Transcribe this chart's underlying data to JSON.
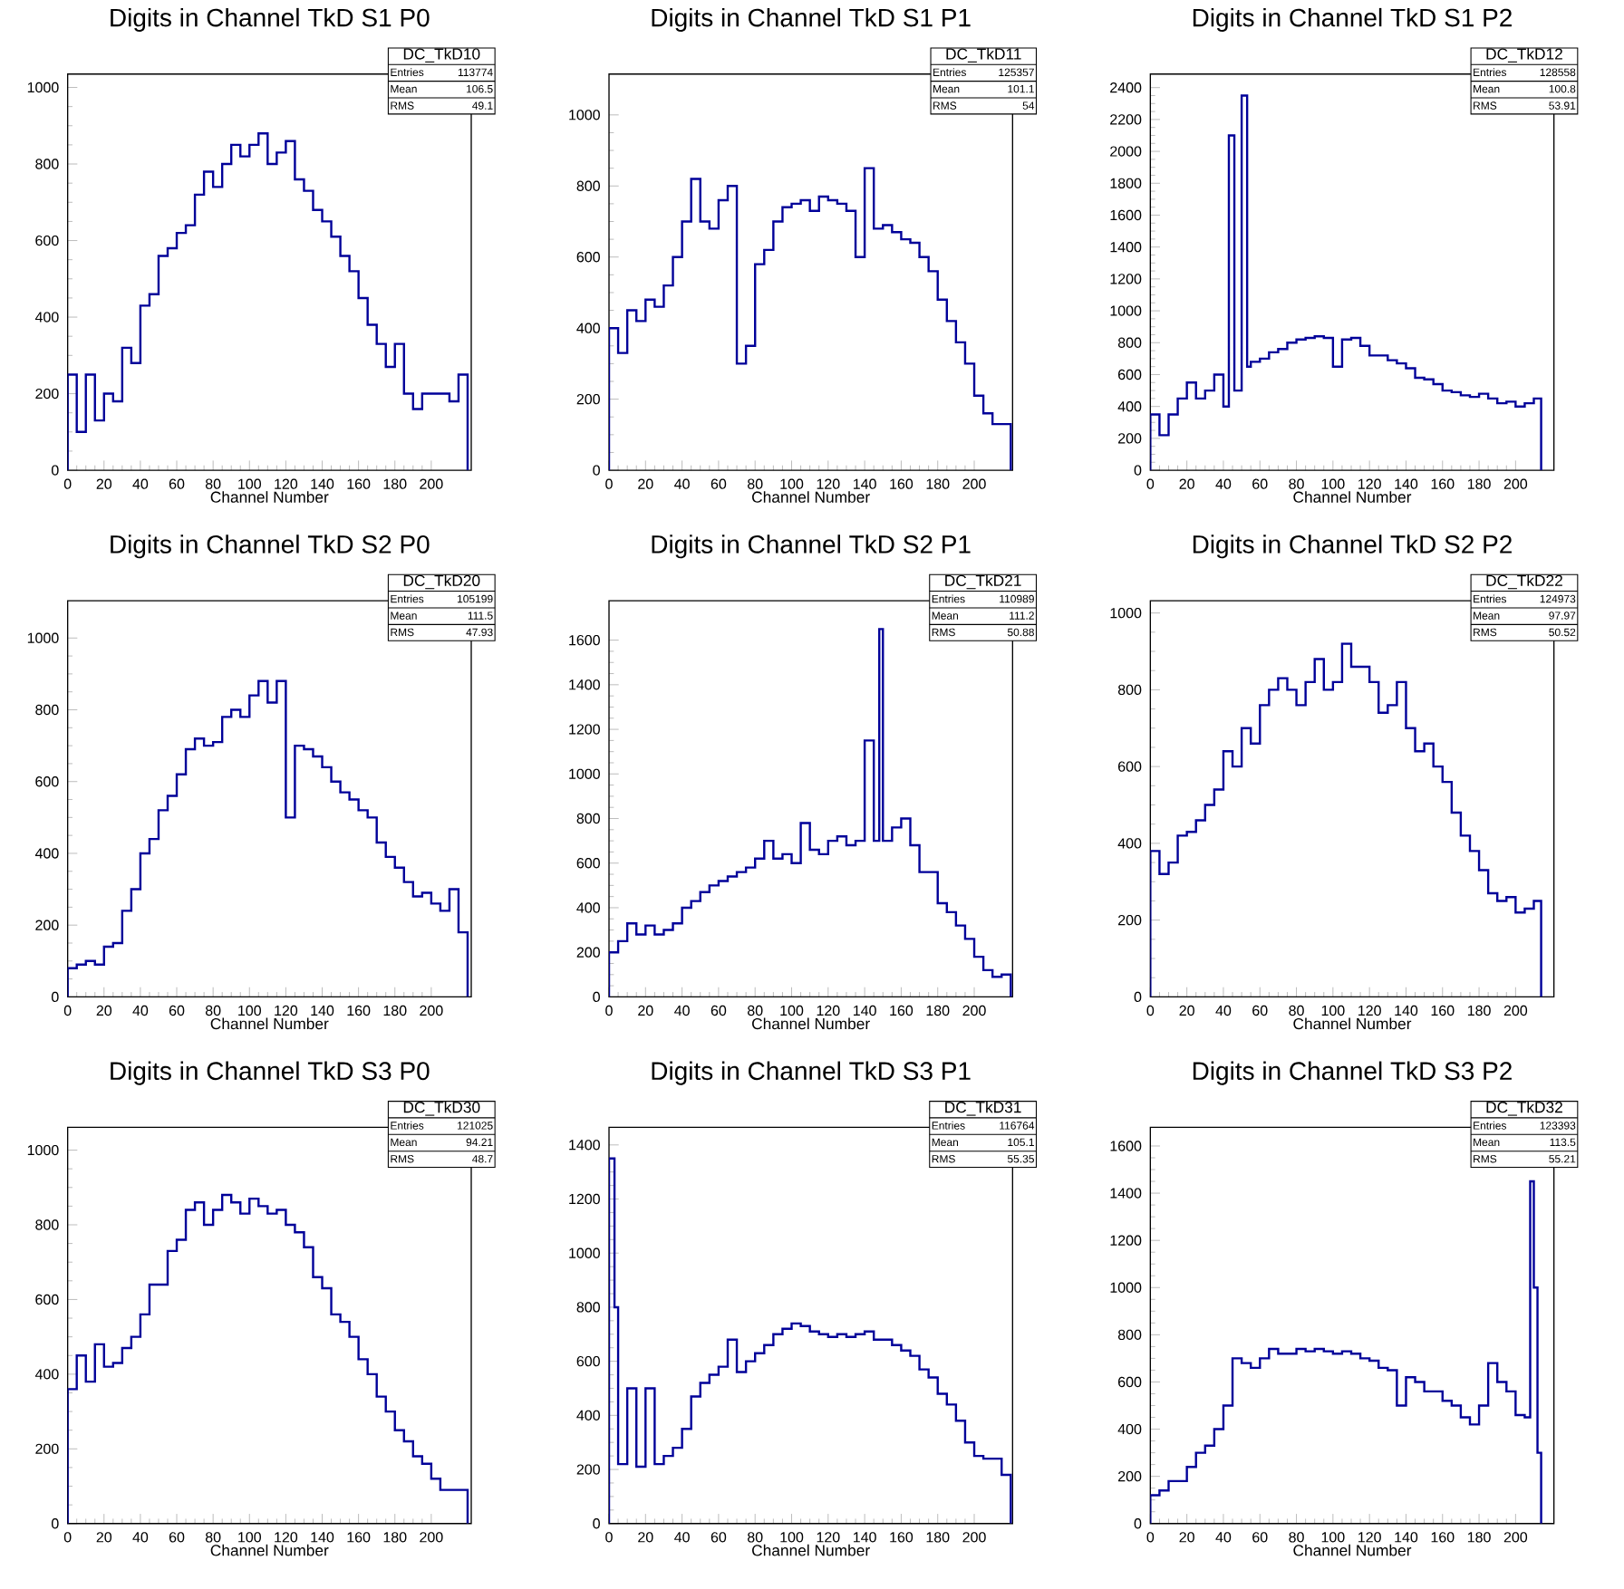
{
  "chart_data": [
    {
      "type": "histogram",
      "title": "Digits in Channel TkD S1 P0",
      "xlabel": "Channel Number",
      "color": "#000099",
      "xlim": [
        0,
        222
      ],
      "ylim": [
        0,
        1035
      ],
      "xticks": [
        0,
        20,
        40,
        60,
        80,
        100,
        120,
        140,
        160,
        180,
        200
      ],
      "yticks": [
        0,
        200,
        400,
        600,
        800,
        1000
      ],
      "annotations": [
        "DC_TkD10",
        "Entries",
        "113774",
        "Mean",
        "106.5",
        "RMS",
        "49.1"
      ],
      "bins": [
        0,
        5,
        10,
        15,
        20,
        25,
        30,
        35,
        40,
        45,
        50,
        55,
        60,
        65,
        70,
        75,
        80,
        85,
        90,
        95,
        100,
        105,
        110,
        115,
        120,
        125,
        130,
        135,
        140,
        145,
        150,
        155,
        160,
        165,
        170,
        175,
        180,
        185,
        190,
        195,
        200,
        205,
        210,
        215,
        220
      ],
      "values": [
        250,
        100,
        250,
        130,
        200,
        180,
        320,
        280,
        430,
        460,
        560,
        580,
        620,
        640,
        720,
        780,
        740,
        800,
        850,
        820,
        850,
        880,
        800,
        830,
        860,
        760,
        730,
        680,
        650,
        610,
        560,
        520,
        450,
        380,
        330,
        270,
        330,
        200,
        160,
        200,
        200,
        200,
        180,
        250
      ]
    },
    {
      "type": "histogram",
      "title": "Digits in Channel TkD S1 P1",
      "xlabel": "Channel Number",
      "color": "#000099",
      "xlim": [
        0,
        221
      ],
      "ylim": [
        0,
        1115
      ],
      "xticks": [
        0,
        20,
        40,
        60,
        80,
        100,
        120,
        140,
        160,
        180,
        200
      ],
      "yticks": [
        0,
        200,
        400,
        600,
        800,
        1000
      ],
      "annotations": [
        "DC_TkD11",
        "Entries",
        "125357",
        "Mean",
        "101.1",
        "RMS",
        "54"
      ],
      "bins": [
        0,
        5,
        10,
        15,
        20,
        25,
        30,
        35,
        40,
        45,
        50,
        55,
        60,
        65,
        70,
        75,
        80,
        85,
        90,
        95,
        100,
        105,
        110,
        115,
        120,
        125,
        130,
        135,
        140,
        145,
        150,
        155,
        160,
        165,
        170,
        175,
        180,
        185,
        190,
        195,
        200,
        205,
        210,
        215,
        220
      ],
      "values": [
        400,
        330,
        450,
        420,
        480,
        460,
        520,
        600,
        700,
        820,
        700,
        680,
        760,
        800,
        300,
        350,
        580,
        620,
        700,
        740,
        750,
        760,
        730,
        770,
        760,
        750,
        730,
        600,
        850,
        680,
        690,
        670,
        650,
        640,
        600,
        560,
        480,
        420,
        360,
        300,
        210,
        160,
        130,
        130
      ]
    },
    {
      "type": "histogram",
      "title": "Digits in Channel TkD S1 P2",
      "xlabel": "Channel Number",
      "color": "#000099",
      "xlim": [
        0,
        221
      ],
      "ylim": [
        0,
        2485
      ],
      "xticks": [
        0,
        20,
        40,
        60,
        80,
        100,
        120,
        140,
        160,
        180,
        200
      ],
      "yticks": [
        0,
        200,
        400,
        600,
        800,
        1000,
        1200,
        1400,
        1600,
        1800,
        2000,
        2200,
        2400
      ],
      "annotations": [
        "DC_TkD12",
        "Entries",
        "128558",
        "Mean",
        "100.8",
        "RMS",
        "53.91"
      ],
      "bins": [
        0,
        5,
        10,
        15,
        20,
        25,
        30,
        35,
        40,
        43,
        46,
        50,
        53,
        55,
        60,
        65,
        70,
        75,
        80,
        85,
        90,
        95,
        100,
        105,
        110,
        115,
        120,
        125,
        130,
        135,
        140,
        145,
        150,
        155,
        160,
        165,
        170,
        175,
        180,
        185,
        190,
        195,
        200,
        205,
        210,
        214
      ],
      "values": [
        350,
        220,
        350,
        450,
        550,
        450,
        500,
        600,
        400,
        2100,
        500,
        2350,
        650,
        680,
        700,
        740,
        760,
        800,
        820,
        830,
        840,
        830,
        650,
        820,
        830,
        780,
        720,
        720,
        690,
        670,
        640,
        580,
        570,
        540,
        500,
        490,
        470,
        460,
        480,
        450,
        420,
        430,
        400,
        420,
        450
      ]
    },
    {
      "type": "histogram",
      "title": "Digits in Channel TkD S2 P0",
      "xlabel": "Channel Number",
      "color": "#000099",
      "xlim": [
        0,
        222
      ],
      "ylim": [
        0,
        1104
      ],
      "xticks": [
        0,
        20,
        40,
        60,
        80,
        100,
        120,
        140,
        160,
        180,
        200
      ],
      "yticks": [
        0,
        200,
        400,
        600,
        800,
        1000
      ],
      "annotations": [
        "DC_TkD20",
        "Entries",
        "105199",
        "Mean",
        "111.5",
        "RMS",
        "47.93"
      ],
      "bins": [
        0,
        5,
        10,
        15,
        20,
        25,
        30,
        35,
        40,
        45,
        50,
        55,
        60,
        65,
        70,
        75,
        80,
        85,
        90,
        95,
        100,
        105,
        110,
        115,
        120,
        125,
        130,
        135,
        140,
        145,
        150,
        155,
        160,
        165,
        170,
        175,
        180,
        185,
        190,
        195,
        200,
        205,
        210,
        215,
        220
      ],
      "values": [
        80,
        90,
        100,
        90,
        140,
        150,
        240,
        300,
        400,
        440,
        520,
        560,
        620,
        690,
        720,
        700,
        710,
        780,
        800,
        780,
        840,
        880,
        820,
        880,
        500,
        700,
        690,
        670,
        640,
        600,
        570,
        550,
        520,
        500,
        430,
        390,
        360,
        320,
        280,
        290,
        260,
        240,
        300,
        180
      ]
    },
    {
      "type": "histogram",
      "title": "Digits in Channel TkD S2 P1",
      "xlabel": "Channel Number",
      "color": "#000099",
      "xlim": [
        0,
        221
      ],
      "ylim": [
        0,
        1777
      ],
      "xticks": [
        0,
        20,
        40,
        60,
        80,
        100,
        120,
        140,
        160,
        180,
        200
      ],
      "yticks": [
        0,
        200,
        400,
        600,
        800,
        1000,
        1200,
        1400,
        1600
      ],
      "annotations": [
        "DC_TkD21",
        "Entries",
        "110989",
        "Mean",
        "111.2",
        "RMS",
        "50.88"
      ],
      "bins": [
        0,
        5,
        10,
        15,
        20,
        25,
        30,
        35,
        40,
        45,
        50,
        55,
        60,
        65,
        70,
        75,
        80,
        85,
        90,
        95,
        100,
        105,
        110,
        115,
        120,
        125,
        130,
        135,
        140,
        145,
        148,
        150,
        155,
        160,
        165,
        170,
        175,
        180,
        185,
        190,
        195,
        200,
        205,
        210,
        215,
        220
      ],
      "values": [
        200,
        250,
        330,
        280,
        320,
        280,
        300,
        330,
        400,
        430,
        470,
        500,
        520,
        540,
        560,
        580,
        620,
        700,
        620,
        640,
        600,
        780,
        660,
        640,
        700,
        720,
        680,
        700,
        1150,
        700,
        1650,
        700,
        760,
        800,
        680,
        560,
        560,
        420,
        380,
        320,
        260,
        180,
        120,
        90,
        100
      ]
    },
    {
      "type": "histogram",
      "title": "Digits in Channel TkD S2 P2",
      "xlabel": "Channel Number",
      "color": "#000099",
      "xlim": [
        0,
        221
      ],
      "ylim": [
        0,
        1032
      ],
      "xticks": [
        0,
        20,
        40,
        60,
        80,
        100,
        120,
        140,
        160,
        180,
        200
      ],
      "yticks": [
        0,
        200,
        400,
        600,
        800,
        1000
      ],
      "annotations": [
        "DC_TkD22",
        "Entries",
        "124973",
        "Mean",
        "97.97",
        "RMS",
        "50.52"
      ],
      "bins": [
        0,
        5,
        10,
        15,
        20,
        25,
        30,
        35,
        40,
        45,
        50,
        55,
        60,
        65,
        70,
        75,
        80,
        85,
        90,
        95,
        100,
        105,
        110,
        115,
        120,
        125,
        130,
        135,
        140,
        145,
        150,
        155,
        160,
        165,
        170,
        175,
        180,
        185,
        190,
        195,
        200,
        205,
        210,
        214
      ],
      "values": [
        380,
        320,
        350,
        420,
        430,
        460,
        500,
        540,
        640,
        600,
        700,
        660,
        760,
        800,
        830,
        800,
        760,
        820,
        880,
        800,
        820,
        920,
        860,
        860,
        820,
        740,
        760,
        820,
        700,
        640,
        660,
        600,
        560,
        480,
        420,
        380,
        330,
        270,
        250,
        260,
        220,
        230,
        250
      ]
    },
    {
      "type": "histogram",
      "title": "Digits in Channel TkD S3 P0",
      "xlabel": "Channel Number",
      "color": "#000099",
      "xlim": [
        0,
        222
      ],
      "ylim": [
        0,
        1061
      ],
      "xticks": [
        0,
        20,
        40,
        60,
        80,
        100,
        120,
        140,
        160,
        180,
        200
      ],
      "yticks": [
        0,
        200,
        400,
        600,
        800,
        1000
      ],
      "annotations": [
        "DC_TkD30",
        "Entries",
        "121025",
        "Mean",
        "94.21",
        "RMS",
        "48.7"
      ],
      "bins": [
        0,
        5,
        10,
        15,
        20,
        25,
        30,
        35,
        40,
        45,
        50,
        55,
        60,
        65,
        70,
        75,
        80,
        85,
        90,
        95,
        100,
        105,
        110,
        115,
        120,
        125,
        130,
        135,
        140,
        145,
        150,
        155,
        160,
        165,
        170,
        175,
        180,
        185,
        190,
        195,
        200,
        205,
        210,
        215,
        220
      ],
      "values": [
        360,
        450,
        380,
        480,
        420,
        430,
        470,
        500,
        560,
        640,
        640,
        730,
        760,
        840,
        860,
        800,
        840,
        880,
        860,
        830,
        870,
        850,
        830,
        840,
        800,
        780,
        740,
        660,
        630,
        560,
        540,
        500,
        440,
        400,
        340,
        300,
        250,
        220,
        180,
        160,
        120,
        90,
        90,
        90
      ]
    },
    {
      "type": "histogram",
      "title": "Digits in Channel TkD S3 P1",
      "xlabel": "Channel Number",
      "color": "#000099",
      "xlim": [
        0,
        221
      ],
      "ylim": [
        0,
        1465
      ],
      "xticks": [
        0,
        20,
        40,
        60,
        80,
        100,
        120,
        140,
        160,
        180,
        200
      ],
      "yticks": [
        0,
        200,
        400,
        600,
        800,
        1000,
        1200,
        1400
      ],
      "annotations": [
        "DC_TkD31",
        "Entries",
        "116764",
        "Mean",
        "105.1",
        "RMS",
        "55.35"
      ],
      "bins": [
        0,
        3,
        5,
        10,
        15,
        20,
        25,
        30,
        35,
        40,
        45,
        50,
        55,
        60,
        65,
        70,
        75,
        80,
        85,
        90,
        95,
        100,
        105,
        110,
        115,
        120,
        125,
        130,
        135,
        140,
        145,
        150,
        155,
        160,
        165,
        170,
        175,
        180,
        185,
        190,
        195,
        200,
        205,
        210,
        215,
        220
      ],
      "values": [
        1350,
        800,
        220,
        500,
        210,
        500,
        220,
        250,
        280,
        350,
        470,
        520,
        550,
        580,
        680,
        560,
        600,
        630,
        660,
        700,
        720,
        740,
        730,
        710,
        700,
        690,
        700,
        690,
        700,
        710,
        680,
        680,
        660,
        640,
        620,
        570,
        540,
        480,
        440,
        380,
        300,
        250,
        240,
        240,
        180
      ]
    },
    {
      "type": "histogram",
      "title": "Digits in Channel TkD S3 P2",
      "xlabel": "Channel Number",
      "color": "#000099",
      "xlim": [
        0,
        221
      ],
      "ylim": [
        0,
        1679
      ],
      "xticks": [
        0,
        20,
        40,
        60,
        80,
        100,
        120,
        140,
        160,
        180,
        200
      ],
      "yticks": [
        0,
        200,
        400,
        600,
        800,
        1000,
        1200,
        1400,
        1600
      ],
      "annotations": [
        "DC_TkD32",
        "Entries",
        "123393",
        "Mean",
        "113.5",
        "RMS",
        "55.21"
      ],
      "bins": [
        0,
        5,
        10,
        15,
        20,
        25,
        30,
        35,
        40,
        45,
        50,
        55,
        60,
        65,
        70,
        75,
        80,
        85,
        90,
        95,
        100,
        105,
        110,
        115,
        120,
        125,
        130,
        135,
        140,
        145,
        150,
        155,
        160,
        165,
        170,
        175,
        180,
        185,
        190,
        195,
        200,
        205,
        208,
        210,
        212,
        214
      ],
      "values": [
        120,
        140,
        180,
        180,
        240,
        300,
        330,
        400,
        500,
        700,
        680,
        660,
        700,
        740,
        720,
        720,
        740,
        730,
        740,
        730,
        720,
        730,
        720,
        700,
        690,
        660,
        650,
        500,
        620,
        600,
        560,
        560,
        520,
        500,
        450,
        420,
        500,
        680,
        600,
        560,
        460,
        450,
        1450,
        1000,
        300
      ]
    }
  ]
}
